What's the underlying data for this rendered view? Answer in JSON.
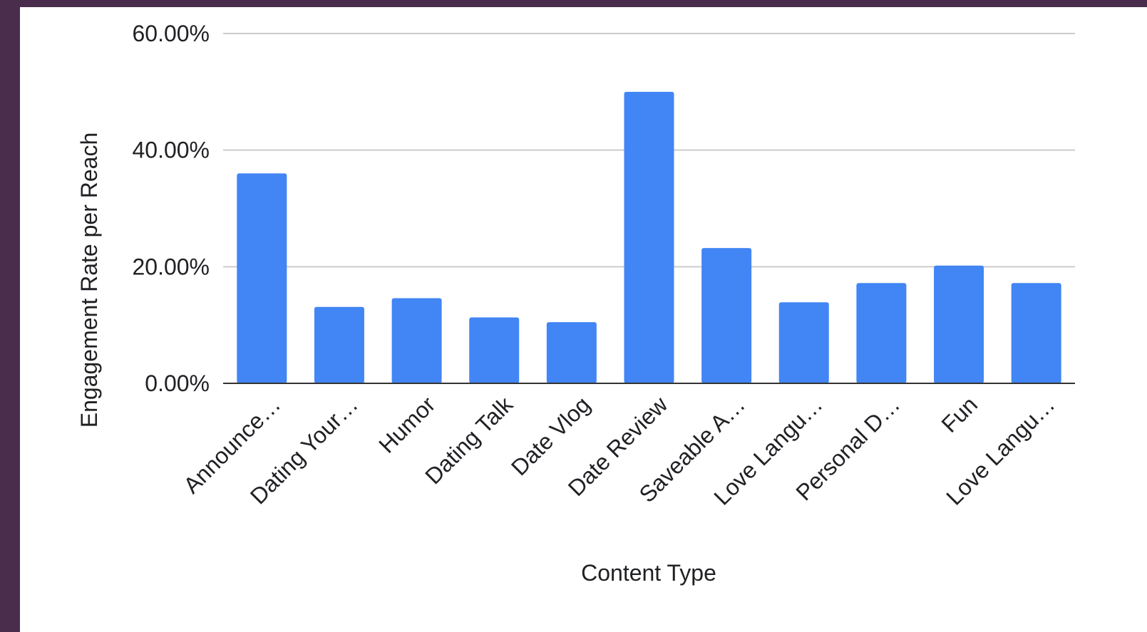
{
  "chart_data": {
    "type": "bar",
    "title": "",
    "xlabel": "Content Type",
    "ylabel": "Engagement Rate per Reach",
    "categories": [
      "Announce…",
      "Dating Your…",
      "Humor",
      "Dating Talk",
      "Date Vlog",
      "Date Review",
      "Saveable A…",
      "Love Langu…",
      "Personal D…",
      "Fun",
      "Love Langu…"
    ],
    "values": [
      36.0,
      13.1,
      14.6,
      11.3,
      10.5,
      50.0,
      23.2,
      13.9,
      17.2,
      20.2,
      17.2
    ],
    "yticks": [
      "0.00%",
      "20.00%",
      "40.00%",
      "60.00%"
    ],
    "ylim": [
      0,
      60
    ],
    "grid": true,
    "legend": "none",
    "bar_color": "#4285f4"
  }
}
